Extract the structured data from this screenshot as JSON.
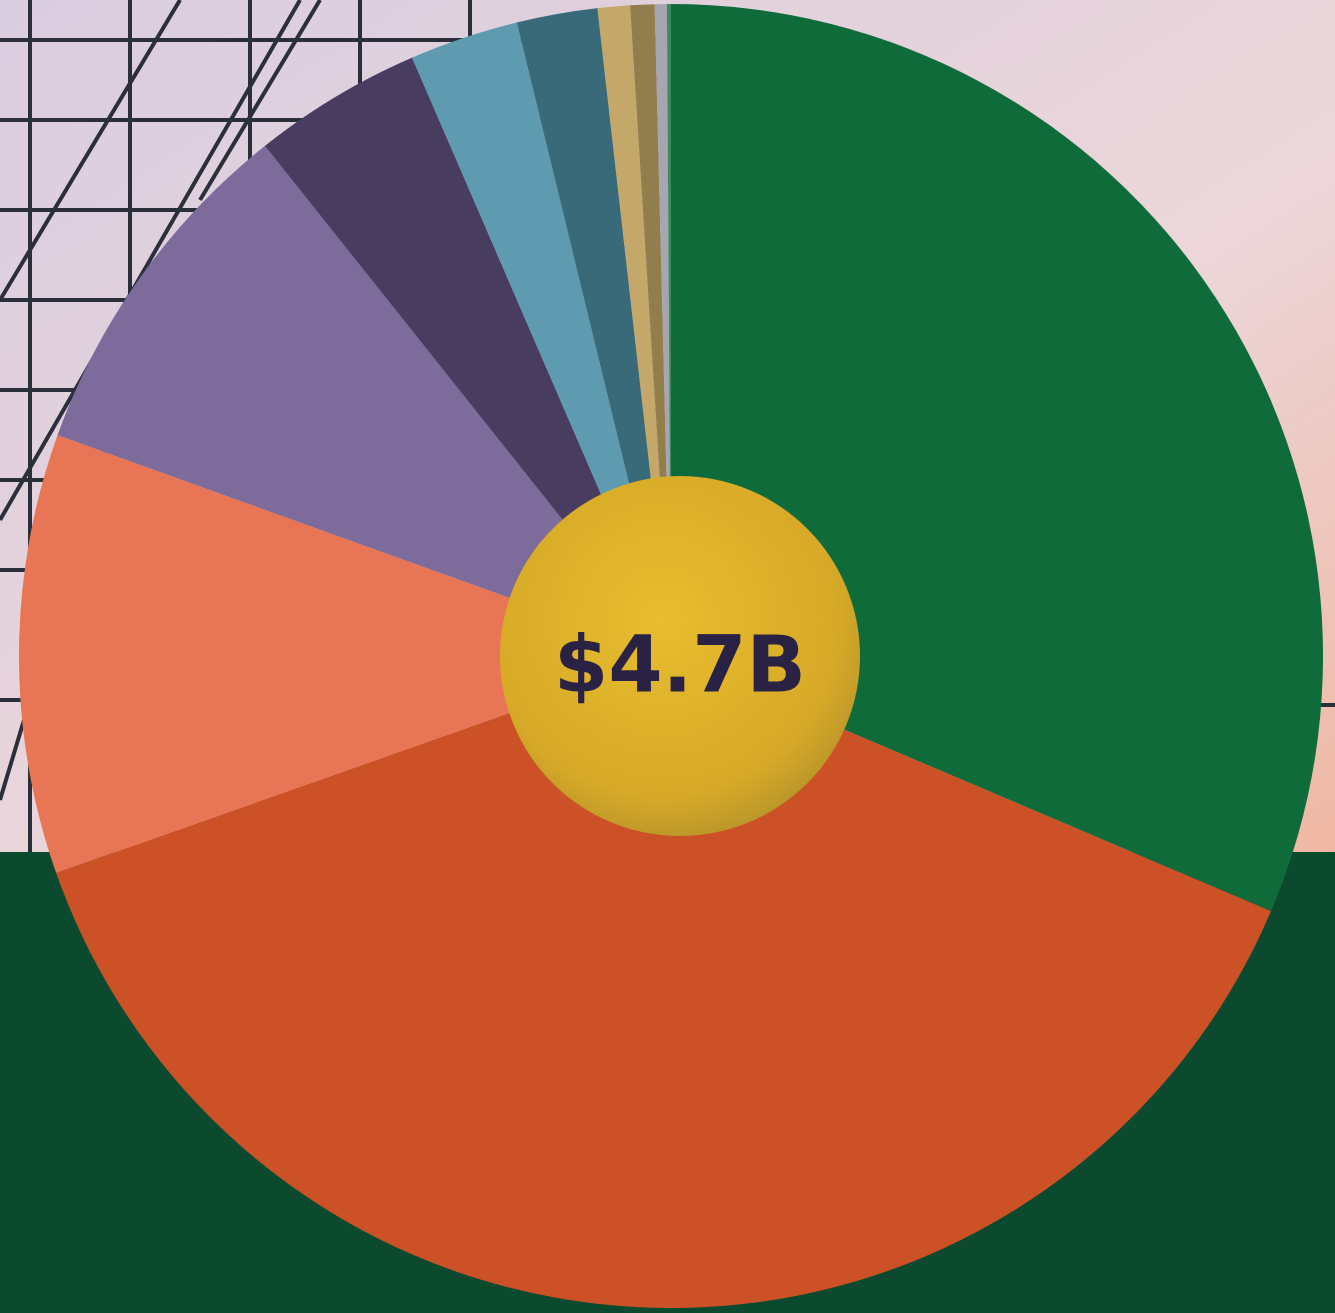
{
  "chart_data": {
    "type": "pie",
    "center_label": "$4.7B",
    "values": [
      31.4,
      38.2,
      10.9,
      8.8,
      4.2,
      2.7,
      2.0,
      0.8,
      0.6,
      0.3,
      0.1
    ],
    "colors": [
      "#106b3b",
      "#cc5126",
      "#e87656",
      "#7c6b9b",
      "#493c61",
      "#5e9bb0",
      "#386a7a",
      "#c4a86a",
      "#927d4d",
      "#a6a6b0",
      "#3d8a5e"
    ]
  }
}
